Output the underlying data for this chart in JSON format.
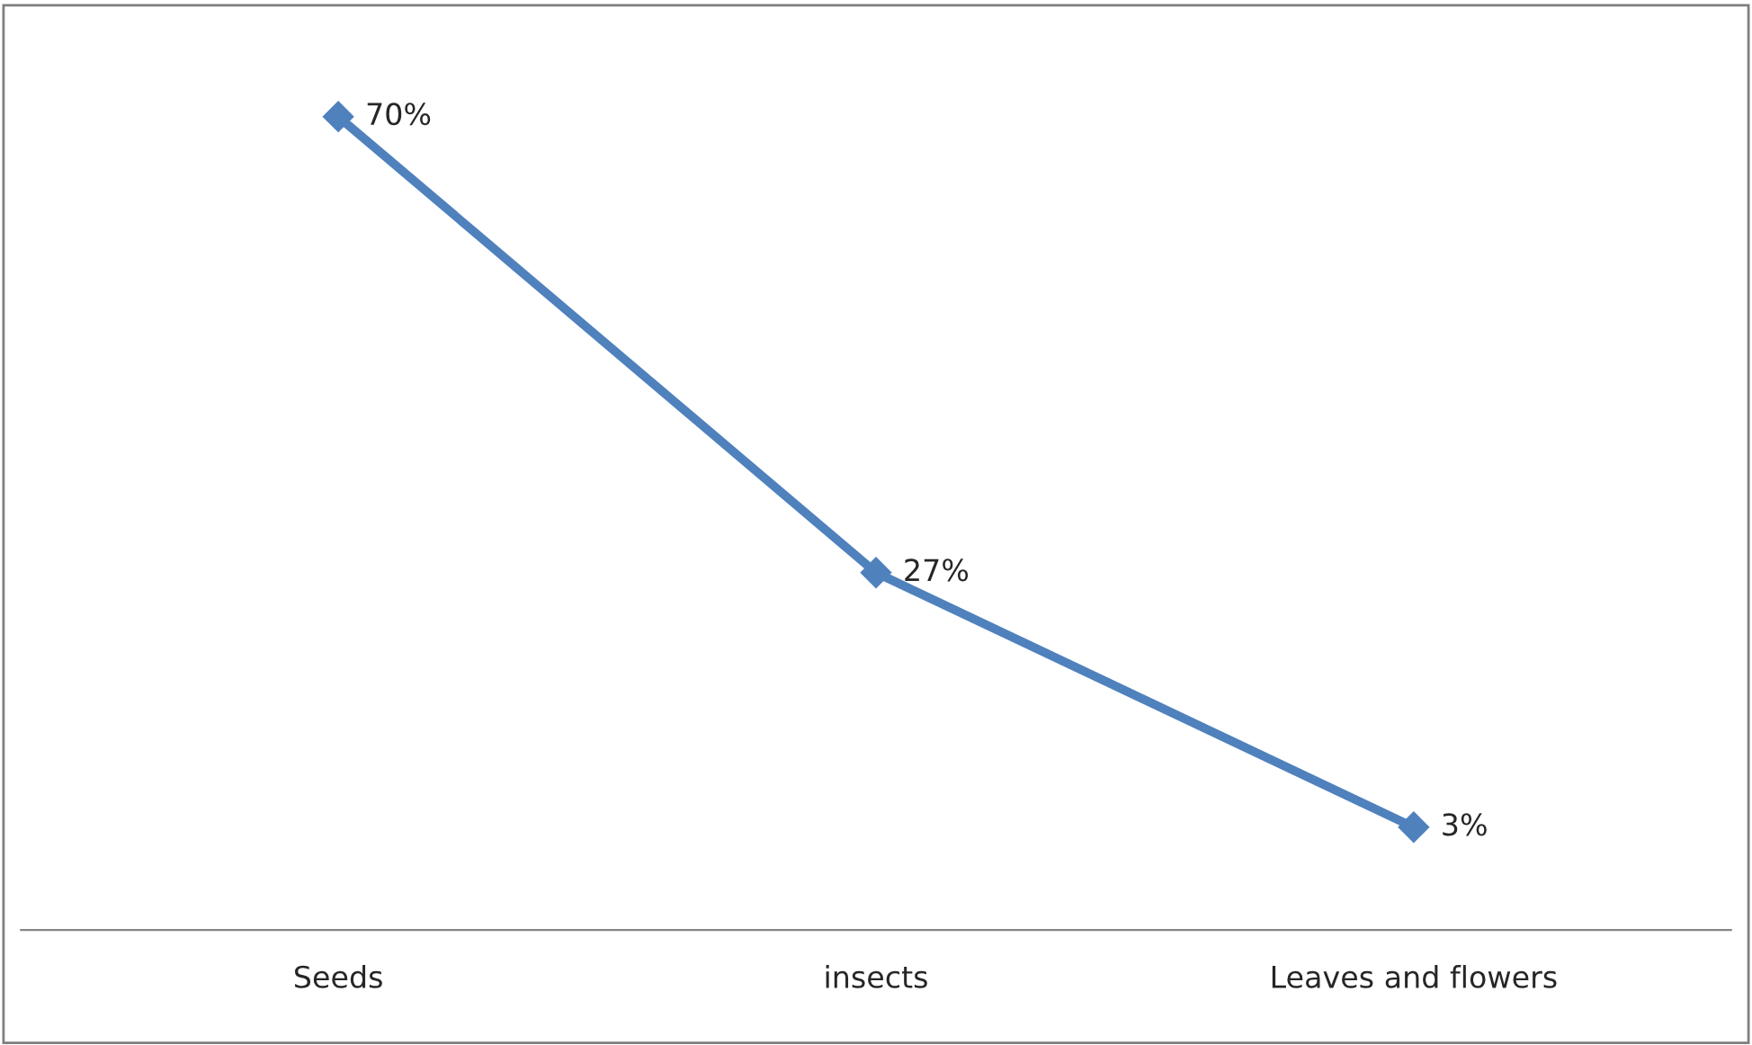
{
  "chart_data": {
    "type": "line",
    "categories": [
      "Seeds",
      "insects",
      "Leaves and flowers"
    ],
    "series": [
      {
        "color": "#4f81bd",
        "values": [
          70,
          27,
          3
        ],
        "value_labels": [
          "70%",
          "27%",
          "3%"
        ]
      }
    ],
    "marker": "diamond",
    "line_style": "solid",
    "grid": false,
    "legend": false,
    "tick_labels": "x"
  }
}
